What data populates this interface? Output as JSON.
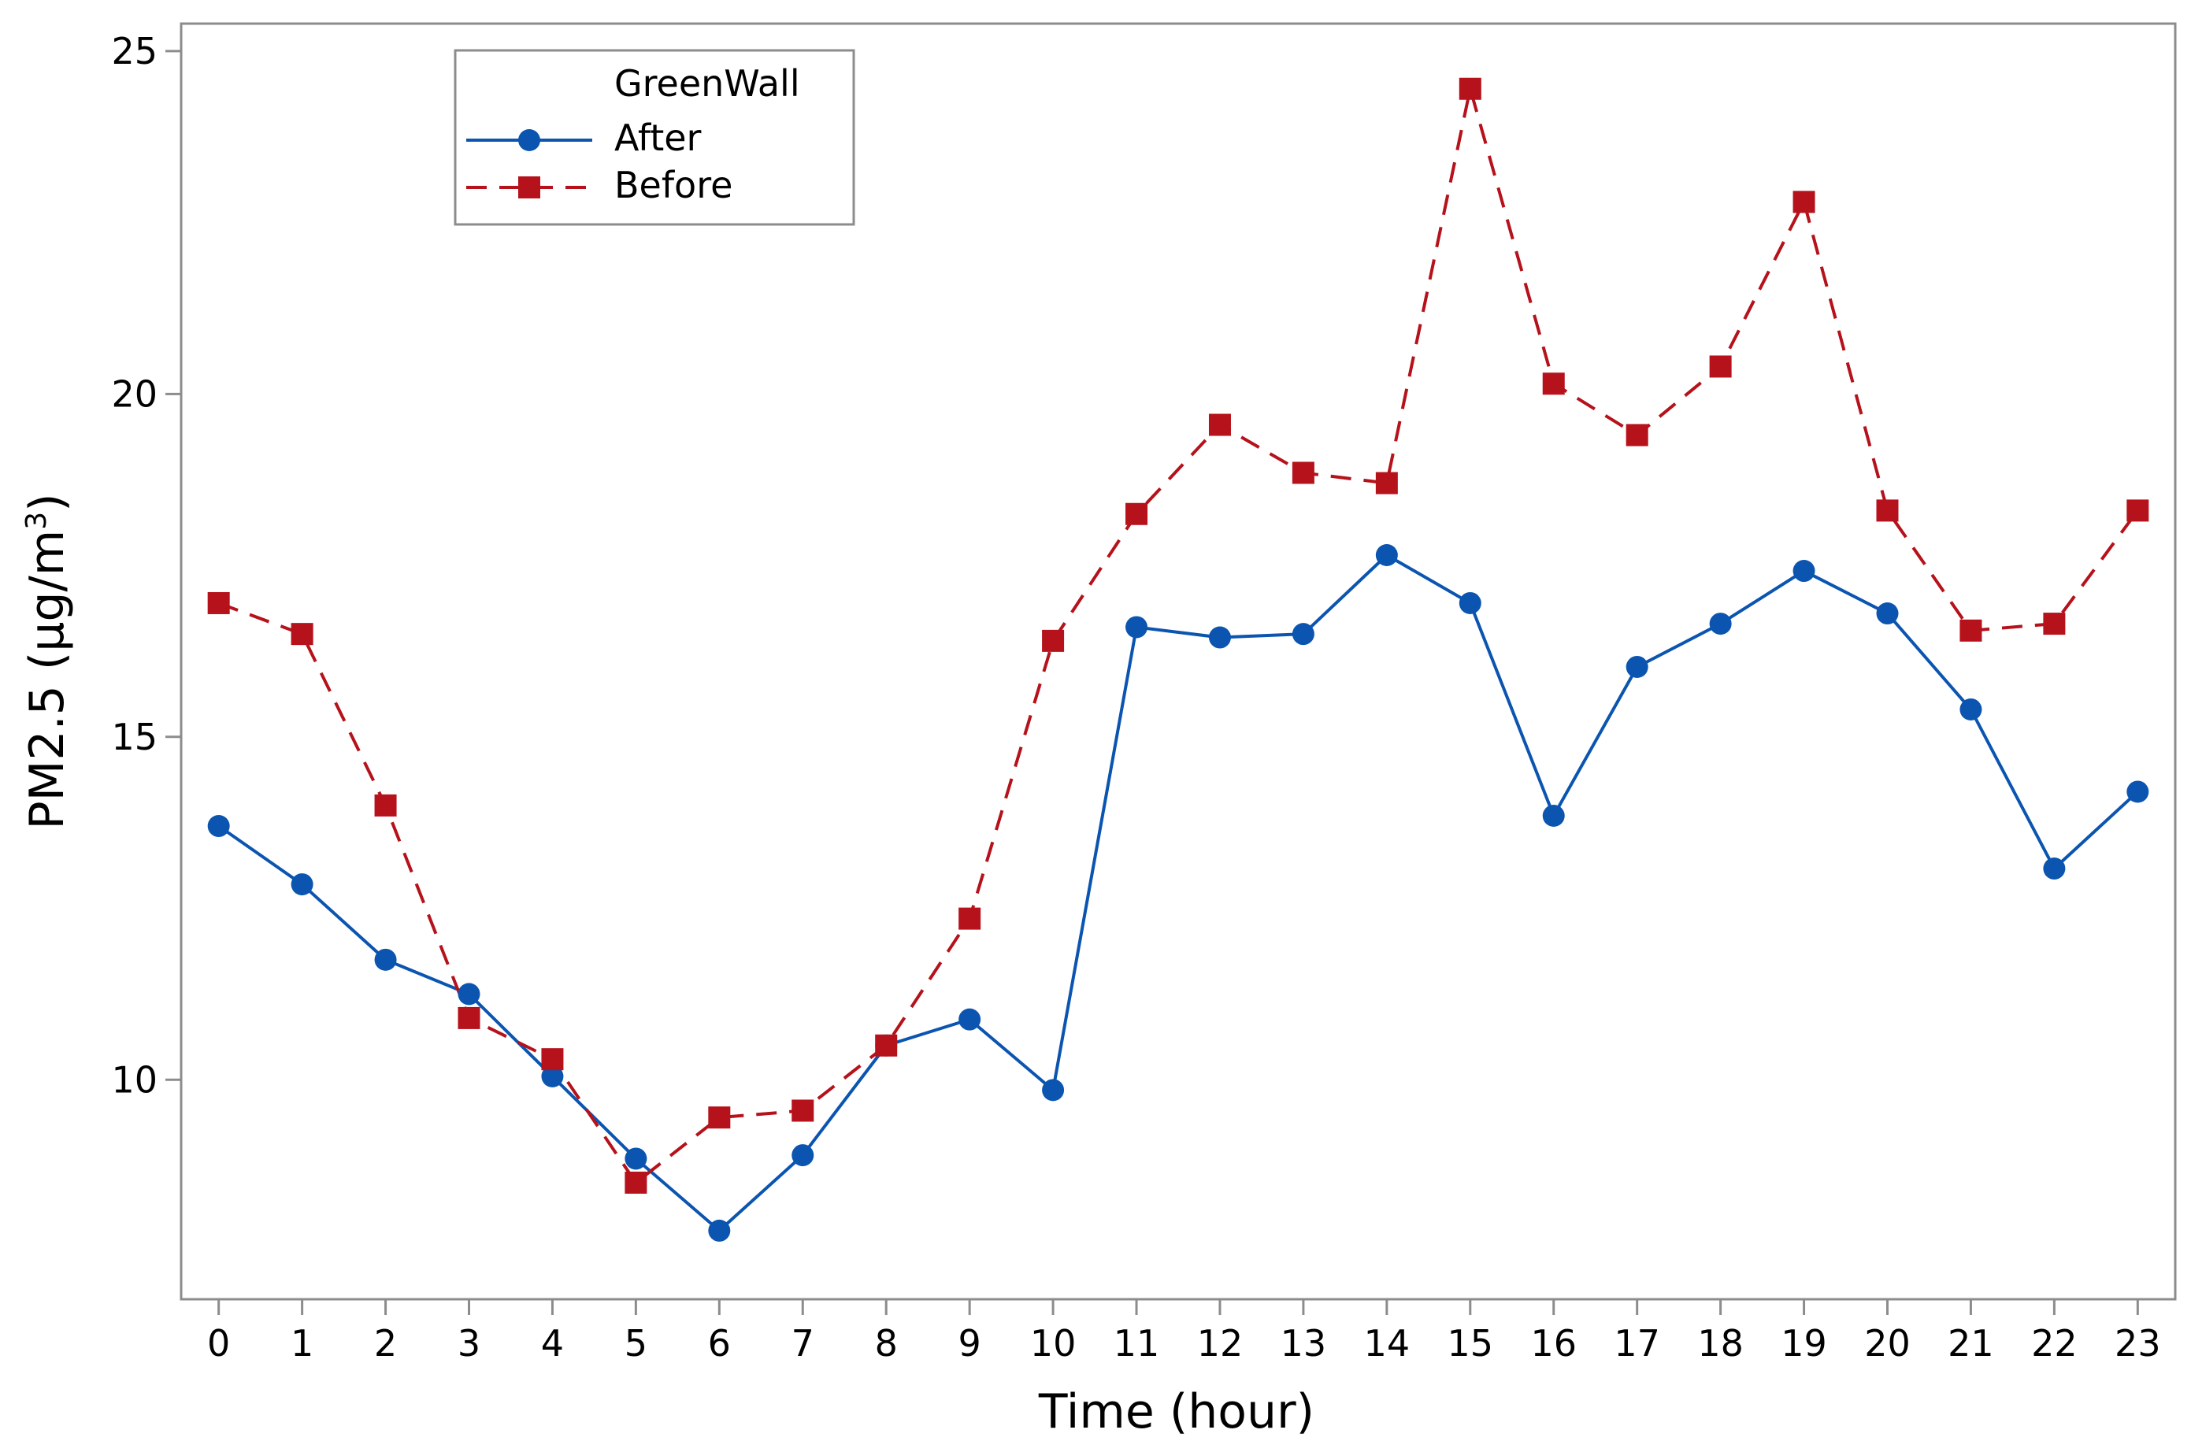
{
  "chart_data": {
    "type": "line",
    "title": "",
    "xlabel": "Time (hour)",
    "ylabel_main": "PM2.5 (µg/m",
    "ylabel_sup": "3",
    "ylabel_close": ")",
    "x": [
      0,
      1,
      2,
      3,
      4,
      5,
      6,
      7,
      8,
      9,
      10,
      11,
      12,
      13,
      14,
      15,
      16,
      17,
      18,
      19,
      20,
      21,
      22,
      23
    ],
    "x_tick_labels": [
      "0",
      "1",
      "2",
      "3",
      "4",
      "5",
      "6",
      "7",
      "8",
      "9",
      "10",
      "11",
      "12",
      "13",
      "14",
      "15",
      "16",
      "17",
      "18",
      "19",
      "20",
      "21",
      "22",
      "23"
    ],
    "xlim": [
      -0.45,
      23.45
    ],
    "ylim": [
      6.8,
      25.4
    ],
    "y_ticks": [
      10,
      15,
      20,
      25
    ],
    "y_tick_labels": [
      "10",
      "15",
      "20",
      "25"
    ],
    "grid": false,
    "legend": {
      "title": "GreenWall",
      "position": "top-left"
    },
    "series": [
      {
        "name": "After",
        "color": "#0b55b0",
        "marker": "circle",
        "line_style": "solid",
        "values": [
          13.7,
          12.85,
          11.75,
          11.25,
          10.05,
          8.85,
          7.8,
          8.9,
          10.5,
          10.88,
          9.85,
          16.6,
          16.45,
          16.5,
          17.65,
          16.95,
          13.85,
          16.02,
          16.65,
          17.42,
          16.8,
          15.4,
          13.08,
          14.2
        ]
      },
      {
        "name": "Before",
        "color": "#b5121b",
        "marker": "square",
        "line_style": "dashed",
        "values": [
          16.95,
          16.5,
          14.0,
          10.9,
          10.3,
          8.5,
          9.45,
          9.55,
          10.5,
          12.35,
          16.4,
          18.25,
          19.55,
          18.85,
          18.7,
          24.45,
          20.15,
          19.4,
          20.4,
          22.8,
          18.3,
          16.55,
          16.65,
          18.3
        ]
      }
    ]
  }
}
